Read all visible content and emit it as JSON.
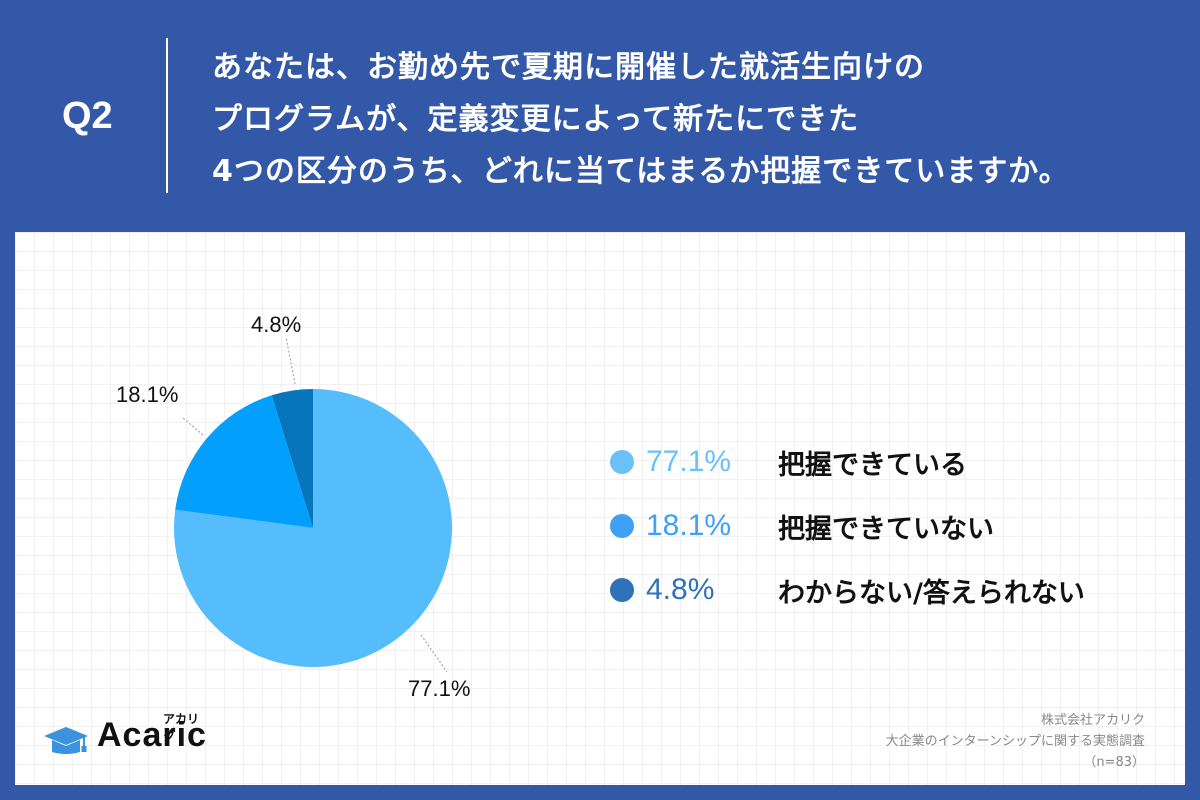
{
  "header": {
    "question_number": "Q2",
    "question_lines": [
      "あなたは、お勤め先で夏期に開催した就活生向けの",
      "プログラムが、定義変更によって新たにできた",
      "4つの区分のうち、どれに当てはまるか把握できていますか。"
    ]
  },
  "colors": {
    "background": "#3358a8",
    "slice_1": "#56bdfc",
    "slice_2": "#039ffc",
    "slice_3": "#0775bb",
    "legend_1": "#6cc0fa",
    "legend_2": "#40a0f5",
    "legend_3": "#2e72b7"
  },
  "pie_labels": [
    "4.8%",
    "18.1%",
    "77.1%"
  ],
  "legend": [
    {
      "pct": "77.1%",
      "label": "把握できている"
    },
    {
      "pct": "18.1%",
      "label": "把握できていない"
    },
    {
      "pct": "4.8%",
      "label": "わからない/答えられない"
    }
  ],
  "logo": {
    "name": "Acaric",
    "kana": "アカリク"
  },
  "source": {
    "company": "株式会社アカリク",
    "survey": "大企業のインターンシップに関する実態調査",
    "n": "（n=83）"
  },
  "chart_data": {
    "type": "pie",
    "title": "あなたは、お勤め先で夏期に開催した就活生向けのプログラムが、定義変更によって新たにできた4つの区分のうち、どれに当てはまるか把握できていますか。",
    "categories": [
      "把握できている",
      "把握できていない",
      "わからない/答えられない"
    ],
    "values": [
      77.1,
      18.1,
      4.8
    ],
    "unit": "%",
    "n": 83,
    "legend_position": "right",
    "start_angle": "12 o'clock, clockwise"
  }
}
